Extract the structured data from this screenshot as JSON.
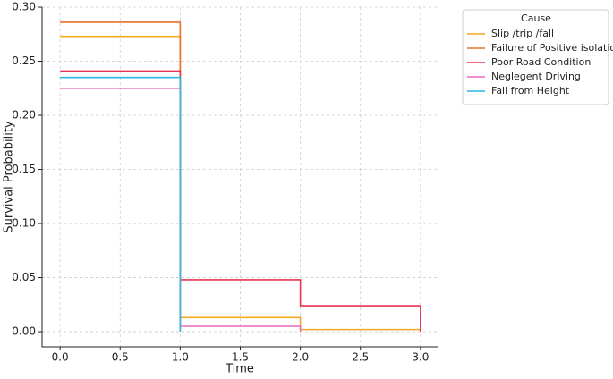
{
  "chart_data": {
    "type": "step",
    "x_label": "Time",
    "y_label": "Survival Probability",
    "x": [
      0,
      1,
      2,
      3
    ],
    "series": [
      {
        "name": "Slip /trip /fall",
        "color": "#f7a823",
        "values": [
          0.273,
          0.013,
          0.002,
          0
        ]
      },
      {
        "name": "Failure of Positive isolation",
        "color": "#e8702a",
        "values": [
          0.286,
          0,
          null,
          null
        ]
      },
      {
        "name": "Poor Road Condition",
        "color": "#e63453",
        "values": [
          0.241,
          0.048,
          0.024,
          0
        ]
      },
      {
        "name": "Neglegent Driving",
        "color": "#e868c2",
        "values": [
          0.225,
          0.005,
          0,
          null
        ]
      },
      {
        "name": "Fall from Height",
        "color": "#2cb8e6",
        "values": [
          0.235,
          0,
          null,
          null
        ]
      }
    ],
    "xlim": [
      -0.15,
      3.15
    ],
    "xticks": [
      {
        "value": 0,
        "label": "0.0"
      },
      0.5,
      {
        "value": 1,
        "label": "1.0"
      },
      1.5,
      {
        "value": 2,
        "label": "2.0"
      },
      2.5,
      {
        "value": 3,
        "label": "3.0"
      }
    ],
    "ylim": [
      -0.014,
      0.3
    ],
    "yticks": [
      {
        "value": 0,
        "label": "0.00"
      },
      0.05,
      {
        "value": 0.1,
        "label": "0.10"
      },
      0.15,
      {
        "value": 0.2,
        "label": "0.20"
      },
      0.25,
      {
        "value": 0.3,
        "label": "0.30"
      }
    ],
    "grid": true,
    "legend_title": "Cause",
    "legend_position": "outside-right"
  }
}
